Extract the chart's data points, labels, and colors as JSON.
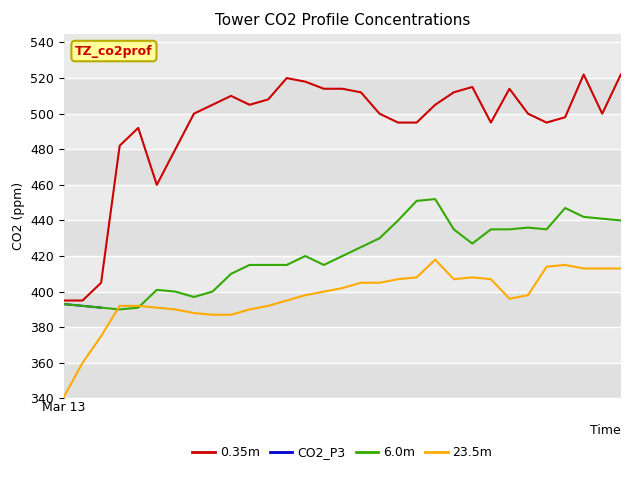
{
  "title": "Tower CO2 Profile Concentrations",
  "xlabel": "Time",
  "ylabel": "CO2 (ppm)",
  "ylim": [
    340,
    545
  ],
  "yticks": [
    340,
    360,
    380,
    400,
    420,
    440,
    460,
    480,
    500,
    520,
    540
  ],
  "x_start_label": "Mar 13",
  "annotation_text": "TZ_co2prof",
  "annotation_color": "#cc0000",
  "annotation_bg": "#ffff99",
  "annotation_border": "#bbaa00",
  "fig_bg_color": "#ffffff",
  "plot_bg_color": "#e8e8e8",
  "grid_color": "#ffffff",
  "series": {
    "0.35m": {
      "color": "#cc0000",
      "x": [
        0,
        1,
        2,
        3,
        4,
        5,
        6,
        7,
        8,
        9,
        10,
        11,
        12,
        13,
        14,
        15,
        16,
        17,
        18,
        19,
        20,
        21,
        22,
        23,
        24,
        25,
        26,
        27,
        28,
        29,
        30
      ],
      "y": [
        395,
        395,
        405,
        482,
        492,
        460,
        480,
        500,
        505,
        510,
        505,
        508,
        520,
        518,
        514,
        514,
        512,
        500,
        495,
        495,
        505,
        512,
        515,
        495,
        514,
        500,
        495,
        498,
        522,
        500,
        522
      ]
    },
    "CO2_P3": {
      "color": "#0000cc",
      "x": [
        0,
        1,
        2
      ],
      "y": [
        393,
        392,
        391
      ]
    },
    "6.0m": {
      "color": "#33aa00",
      "x": [
        0,
        1,
        2,
        3,
        4,
        5,
        6,
        7,
        8,
        9,
        10,
        11,
        12,
        13,
        14,
        15,
        16,
        17,
        18,
        19,
        20,
        21,
        22,
        23,
        24,
        25,
        26,
        27,
        28,
        29,
        30
      ],
      "y": [
        393,
        392,
        391,
        390,
        391,
        401,
        400,
        397,
        400,
        410,
        415,
        415,
        415,
        420,
        415,
        420,
        425,
        430,
        440,
        451,
        452,
        435,
        427,
        435,
        435,
        436,
        435,
        447,
        442,
        441,
        440
      ]
    },
    "23.5m": {
      "color": "#ffaa00",
      "x": [
        0,
        1,
        2,
        3,
        4,
        5,
        6,
        7,
        8,
        9,
        10,
        11,
        12,
        13,
        14,
        15,
        16,
        17,
        18,
        19,
        20,
        21,
        22,
        23,
        24,
        25,
        26,
        27,
        28,
        29,
        30
      ],
      "y": [
        341,
        360,
        375,
        392,
        392,
        391,
        390,
        388,
        387,
        387,
        390,
        392,
        395,
        398,
        400,
        402,
        405,
        405,
        407,
        408,
        418,
        407,
        408,
        407,
        396,
        398,
        414,
        415,
        413,
        413,
        413
      ]
    }
  },
  "legend": [
    {
      "label": "0.35m",
      "color": "#cc0000"
    },
    {
      "label": "CO2_P3",
      "color": "#0000cc"
    },
    {
      "label": "6.0m",
      "color": "#33aa00"
    },
    {
      "label": "23.5m",
      "color": "#ffaa00"
    }
  ]
}
